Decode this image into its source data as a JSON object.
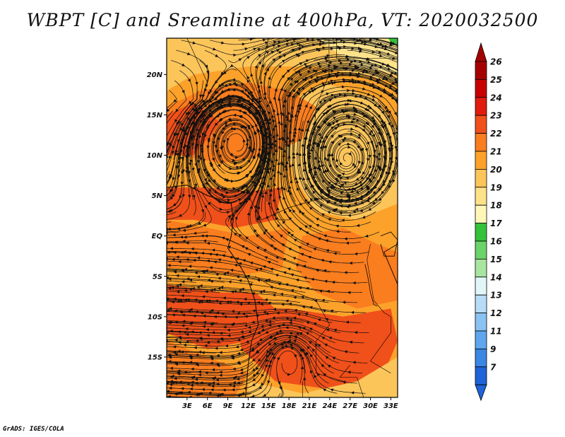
{
  "title": "WBPT [C] and Sreamline at 400hPa, VT: 2020032500",
  "credit": "GrADS: IGES/COLA",
  "map": {
    "lat_range": [
      -20,
      24.5
    ],
    "lon_range": [
      0,
      34
    ],
    "lat_ticks": [
      {
        "value": 20,
        "label": "20N"
      },
      {
        "value": 15,
        "label": "15N"
      },
      {
        "value": 10,
        "label": "10N"
      },
      {
        "value": 5,
        "label": "5N"
      },
      {
        "value": 0,
        "label": "EQ"
      },
      {
        "value": -5,
        "label": "5S"
      },
      {
        "value": -10,
        "label": "10S"
      },
      {
        "value": -15,
        "label": "15S"
      }
    ],
    "lon_ticks": [
      {
        "value": 3,
        "label": "3E"
      },
      {
        "value": 6,
        "label": "6E"
      },
      {
        "value": 9,
        "label": "9E"
      },
      {
        "value": 12,
        "label": "12E"
      },
      {
        "value": 15,
        "label": "15E"
      },
      {
        "value": 18,
        "label": "18E"
      },
      {
        "value": 21,
        "label": "21E"
      },
      {
        "value": 24,
        "label": "24E"
      },
      {
        "value": 27,
        "label": "27E"
      },
      {
        "value": 30,
        "label": "30E"
      },
      {
        "value": 33,
        "label": "33E"
      }
    ],
    "vortices": [
      {
        "name": "cyclonic-circulation-north",
        "lon": 10.5,
        "lat": 11.5
      },
      {
        "name": "anticyclone-east",
        "lon": 26.5,
        "lat": 9.5
      },
      {
        "name": "circulation-south",
        "lon": 18.0,
        "lat": -15.0
      }
    ]
  },
  "colorbar": {
    "levels": [
      {
        "label": "26",
        "color": "#a50000"
      },
      {
        "label": "25",
        "color": "#c80000"
      },
      {
        "label": "24",
        "color": "#e11c0e"
      },
      {
        "label": "23",
        "color": "#f0501a"
      },
      {
        "label": "22",
        "color": "#fa7d1e"
      },
      {
        "label": "21",
        "color": "#fca22a"
      },
      {
        "label": "20",
        "color": "#fcc55a"
      },
      {
        "label": "19",
        "color": "#fde28a"
      },
      {
        "label": "18",
        "color": "#fff7b8"
      },
      {
        "label": "17",
        "color": "#35c13a"
      },
      {
        "label": "16",
        "color": "#6ad36a"
      },
      {
        "label": "15",
        "color": "#a8e5a0"
      },
      {
        "label": "14",
        "color": "#e2f6f8"
      },
      {
        "label": "13",
        "color": "#b7dcf7"
      },
      {
        "label": "12",
        "color": "#8ac2f3"
      },
      {
        "label": "11",
        "color": "#5fa6ee"
      },
      {
        "label": "9",
        "color": "#3a86e3"
      },
      {
        "label": "7",
        "color": "#1e63d8"
      }
    ],
    "top_arrow_color": "#a50000",
    "bottom_arrow_color": "#1e63d8"
  },
  "fill_colors": {
    "warm_dark": "#f0501a",
    "warm_mid": "#fa7d1e",
    "warm_light": "#fca22a",
    "pale": "#fcc55a",
    "pale_yellow": "#fde28a",
    "green": "#35c13a"
  }
}
